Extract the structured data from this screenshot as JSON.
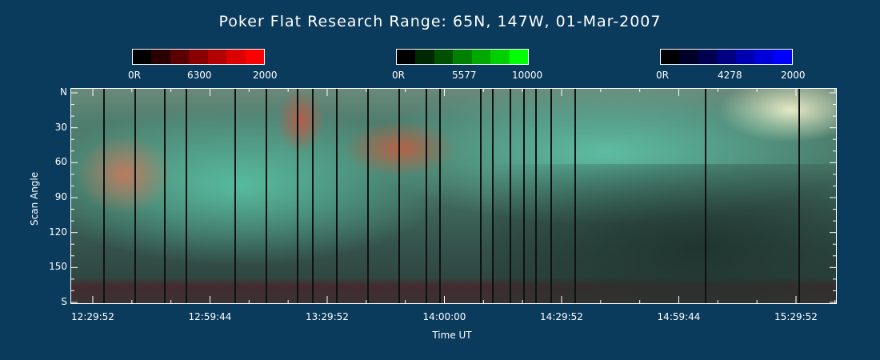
{
  "title": "Poker Flat Research Range: 65N, 147W, 01-Mar-2007",
  "colorbars": [
    {
      "min": "0R",
      "mid": "6300",
      "max": "2000",
      "colors": [
        "#000000",
        "#2a0000",
        "#5a0000",
        "#8a0000",
        "#b40000",
        "#dc0000",
        "#ff0000"
      ]
    },
    {
      "min": "0R",
      "mid": "5577",
      "max": "10000",
      "colors": [
        "#000000",
        "#002800",
        "#005000",
        "#008000",
        "#00a800",
        "#00d000",
        "#00ff00"
      ]
    },
    {
      "min": "0R",
      "mid": "4278",
      "max": "2000",
      "colors": [
        "#000000",
        "#000028",
        "#000050",
        "#000080",
        "#0000b0",
        "#0000d8",
        "#0000ff"
      ]
    }
  ],
  "chart_data": {
    "type": "heatmap",
    "title": "Poker Flat Research Range: 65N, 147W, 01-Mar-2007",
    "xlabel": "Time UT",
    "ylabel": "Scan Angle",
    "x_ticks": [
      "12:29:52",
      "12:59:44",
      "13:29:52",
      "14:00:00",
      "14:29:52",
      "14:59:44",
      "15:29:52"
    ],
    "y_ticks": [
      "N",
      "30",
      "60",
      "90",
      "120",
      "150",
      "S"
    ],
    "ylim": [
      0,
      180
    ],
    "data_gaps_minutes_after_1229": [
      2.5,
      10.5,
      18,
      23.5,
      36,
      44,
      52,
      56,
      62,
      70,
      78,
      85,
      88.5,
      99,
      102,
      106.5,
      110,
      113,
      117,
      123,
      156.5,
      180.5
    ]
  }
}
